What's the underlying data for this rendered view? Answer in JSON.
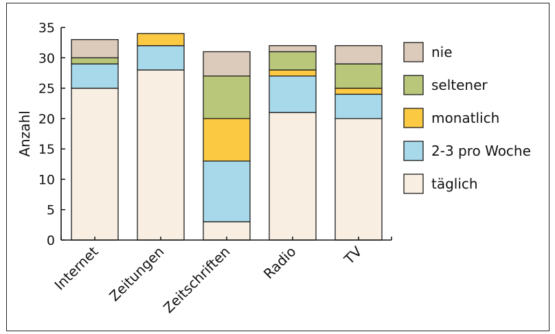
{
  "chart_data": {
    "type": "bar",
    "stacked": true,
    "title": "",
    "xlabel": "",
    "ylabel": "Anzahl",
    "ylim": [
      0,
      35
    ],
    "yticks": [
      0,
      5,
      10,
      15,
      20,
      25,
      30,
      35
    ],
    "grid": false,
    "legend_position": "right",
    "categories": [
      "Internet",
      "Zeitungen",
      "Zeitschriften",
      "Radio",
      "TV"
    ],
    "series": [
      {
        "name": "täglich",
        "color": "#f8efe2",
        "values": [
          25,
          28,
          3,
          21,
          20
        ]
      },
      {
        "name": "2-3 pro Woche",
        "color": "#a8d9ea",
        "values": [
          4,
          4,
          10,
          6,
          4
        ]
      },
      {
        "name": "monatlich",
        "color": "#fcc943",
        "values": [
          0,
          2,
          7,
          1,
          1
        ]
      },
      {
        "name": "seltener",
        "color": "#b8c77a",
        "values": [
          1,
          0,
          7,
          3,
          4
        ]
      },
      {
        "name": "nie",
        "color": "#dccabb",
        "values": [
          3,
          0,
          4,
          1,
          3
        ]
      }
    ],
    "legend_order": [
      "nie",
      "seltener",
      "monatlich",
      "2-3 pro Woche",
      "täglich"
    ]
  }
}
